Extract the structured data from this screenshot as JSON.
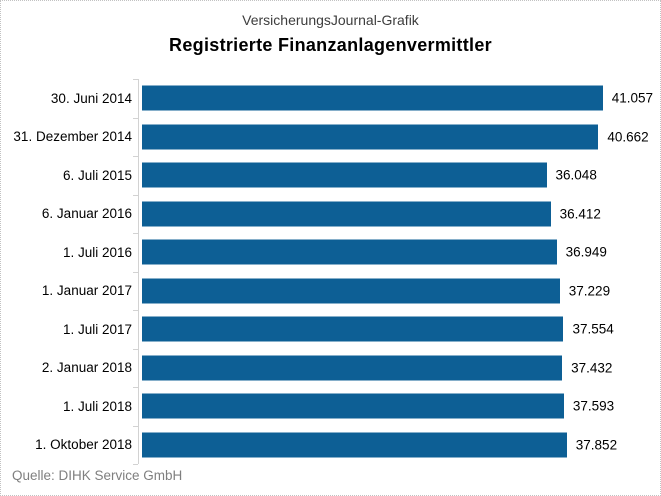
{
  "chart_data": {
    "type": "bar",
    "orientation": "horizontal",
    "header": "VersicherungsJournal-Grafik",
    "title": "Registrierte Finanzanlagenvermittler",
    "source": "Quelle: DIHK Service GmbH",
    "categories": [
      "30. Juni 2014",
      "31. Dezember 2014",
      "6. Juli 2015",
      "6. Januar 2016",
      "1. Juli 2016",
      "1. Januar 2017",
      "1. Juli 2017",
      "2. Januar 2018",
      "1. Juli 2018",
      "1. Oktober 2018"
    ],
    "values": [
      41057,
      40662,
      36048,
      36412,
      36949,
      37229,
      37554,
      37432,
      37593,
      37852
    ],
    "value_labels": [
      "41.057",
      "40.662",
      "36.048",
      "36.412",
      "36.949",
      "37.229",
      "37.554",
      "37.432",
      "37.593",
      "37.852"
    ],
    "xlim": [
      0,
      45000
    ],
    "grid": false,
    "legend": false,
    "bar_color": "#0d5f95",
    "axis_color": "#d2d2d2"
  }
}
